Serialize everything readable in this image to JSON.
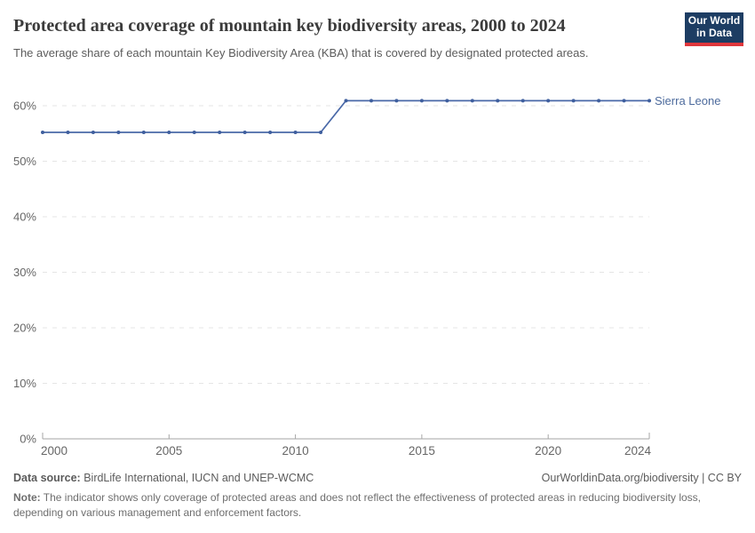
{
  "header": {
    "title": "Protected area coverage of mountain key biodiversity areas, 2000 to 2024",
    "subtitle": "The average share of each mountain Key Biodiversity Area (KBA) that is covered by designated protected areas."
  },
  "logo": {
    "line1": "Our World",
    "line2": "in Data",
    "bg_color": "#1d3d63",
    "accent_color": "#e0373c"
  },
  "chart_data": {
    "type": "line",
    "title": "Protected area coverage of mountain key biodiversity areas, 2000 to 2024",
    "xlabel": "",
    "ylabel": "",
    "xlim": [
      2000,
      2024
    ],
    "ylim": [
      0,
      60
    ],
    "grid": "horizontal-dashed",
    "legend_position": "end-of-line-label",
    "x_ticks": [
      2000,
      2005,
      2010,
      2015,
      2020,
      2024
    ],
    "y_ticks": [
      0,
      10,
      20,
      30,
      40,
      50,
      60
    ],
    "y_tick_suffix": "%",
    "series": [
      {
        "name": "Sierra Leone",
        "color": "#4a69a8",
        "marker_color": "#3f5f9e",
        "label_color": "#4c6a9c",
        "x": [
          2000,
          2001,
          2002,
          2003,
          2004,
          2005,
          2006,
          2007,
          2008,
          2009,
          2010,
          2011,
          2012,
          2013,
          2014,
          2015,
          2016,
          2017,
          2018,
          2019,
          2020,
          2021,
          2022,
          2023,
          2024
        ],
        "values": [
          55.2,
          55.2,
          55.2,
          55.2,
          55.2,
          55.2,
          55.2,
          55.2,
          55.2,
          55.2,
          55.2,
          55.2,
          60.9,
          60.9,
          60.9,
          60.9,
          60.9,
          60.9,
          60.9,
          60.9,
          60.9,
          60.9,
          60.9,
          60.9,
          60.9
        ]
      }
    ]
  },
  "footer": {
    "datasource_label": "Data source:",
    "datasource_text": " BirdLife International, IUCN and UNEP-WCMC",
    "credit": "OurWorldinData.org/biodiversity | CC BY",
    "note_label": "Note:",
    "note_text": " The indicator shows only coverage of protected areas and does not reflect the effectiveness of protected areas in reducing biodiversity loss, depending on various management and enforcement factors."
  }
}
